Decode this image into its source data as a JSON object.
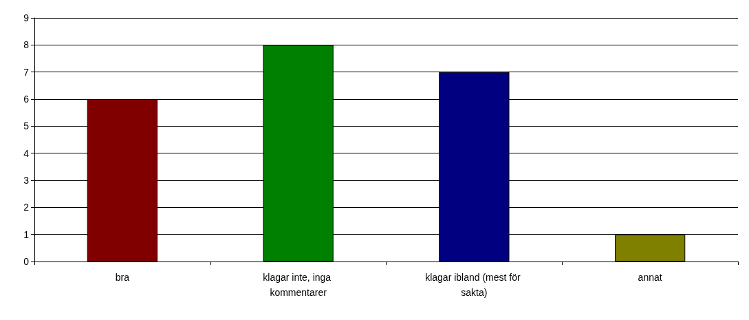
{
  "chart_data": {
    "type": "bar",
    "categories": [
      "bra",
      "klagar inte, inga kommentarer",
      "klagar ibland (mest för sakta)",
      "annat"
    ],
    "values": [
      6,
      8,
      7,
      1
    ],
    "colors": [
      "#800000",
      "#008000",
      "#000080",
      "#808000"
    ],
    "ylim": [
      0,
      9
    ],
    "yticks": [
      0,
      1,
      2,
      3,
      4,
      5,
      6,
      7,
      8,
      9
    ],
    "grid": "y"
  }
}
